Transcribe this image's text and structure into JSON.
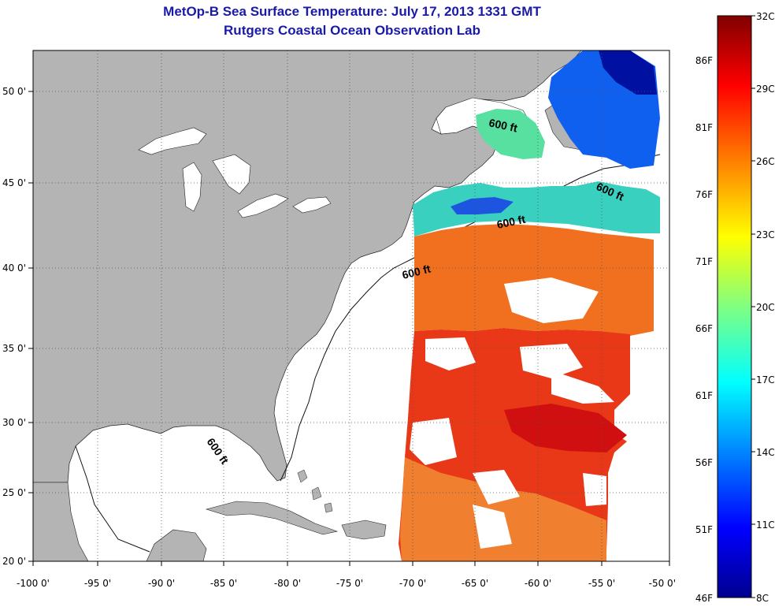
{
  "title": {
    "line1": "MetOp-B Sea Surface Temperature:  July 17, 2013 1331 GMT",
    "line2": "Rutgers Coastal Ocean Observation Lab"
  },
  "map": {
    "lon_ticks": [
      "-100 0'",
      "-95 0'",
      "-90 0'",
      "-85 0'",
      "-80 0'",
      "-75 0'",
      "-70 0'",
      "-65 0'",
      "-60 0'",
      "-55 0'",
      "-50 0'"
    ],
    "lat_ticks": [
      "50 0'",
      "45 0'",
      "40 0'",
      "35 0'",
      "30 0'",
      "25 0'",
      "20 0'"
    ],
    "contour_label": "600 ft",
    "colors": {
      "land": "#b4b4b4",
      "ocean_no_data": "#ffffff",
      "grid": "#555555"
    }
  },
  "colorbar": {
    "celsius_labels": [
      "32C",
      "29C",
      "26C",
      "23C",
      "20C",
      "17C",
      "14C",
      "11C",
      "8C"
    ],
    "fahrenheit_labels": [
      "86F",
      "81F",
      "76F",
      "71F",
      "66F",
      "61F",
      "56F",
      "51F",
      "46F"
    ],
    "colormap": [
      "#00008f",
      "#0000ff",
      "#0080ff",
      "#00ffff",
      "#80ff80",
      "#ffff00",
      "#ff8000",
      "#ff0000",
      "#800000"
    ]
  }
}
